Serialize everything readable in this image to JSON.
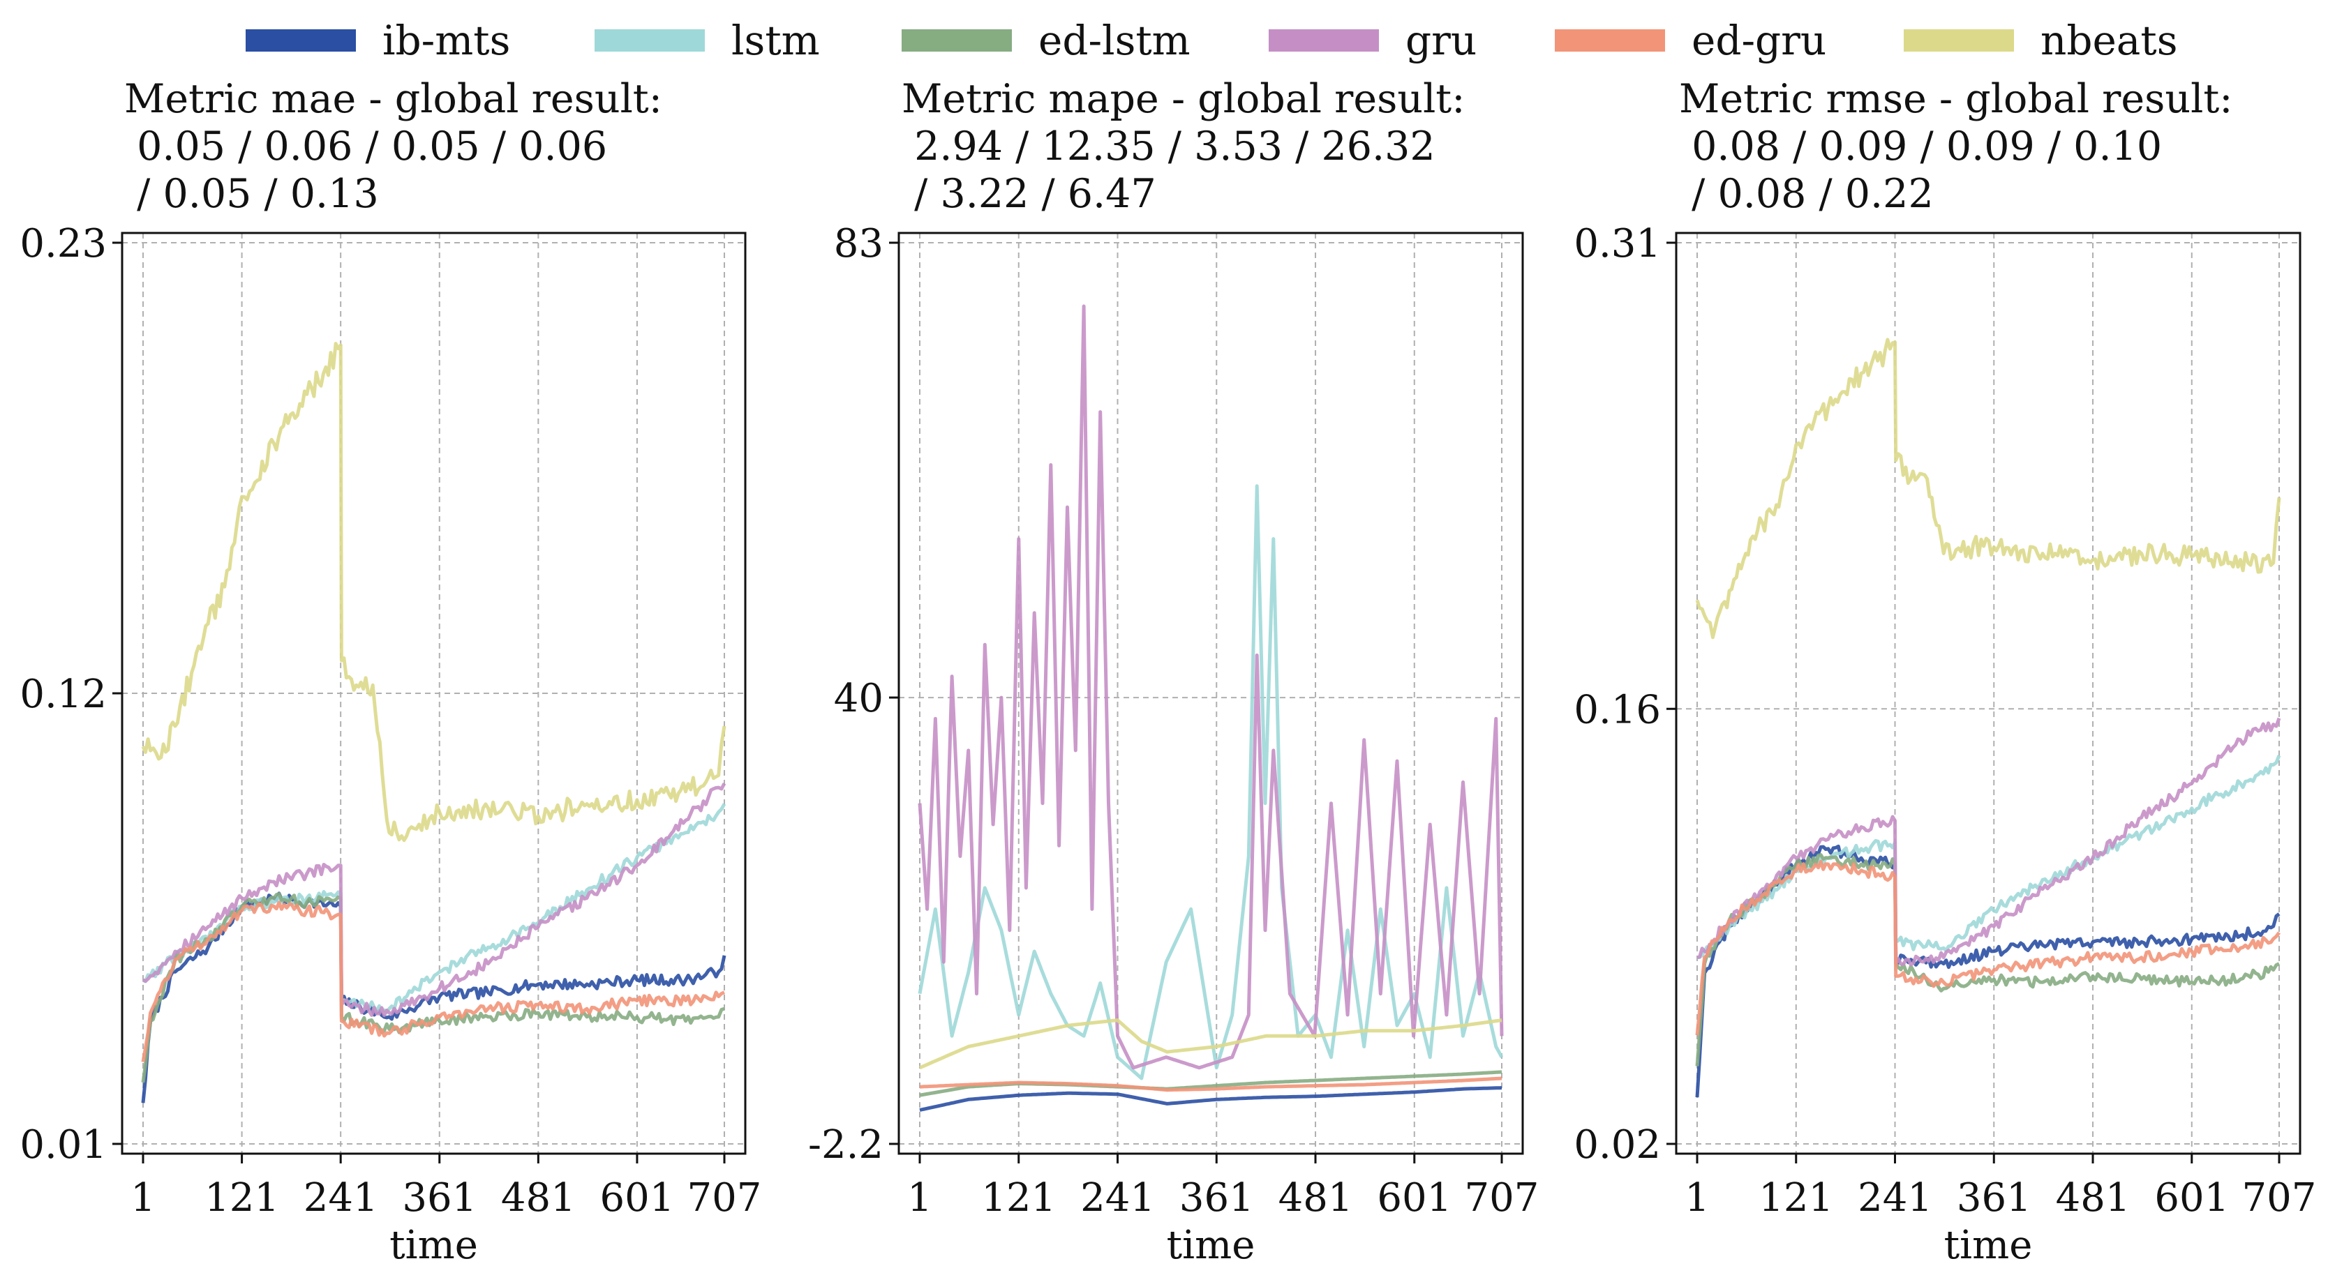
{
  "legend": [
    {
      "name": "ib-mts",
      "color": "#2a4fa3"
    },
    {
      "name": "lstm",
      "color": "#9fd8d8"
    },
    {
      "name": "ed-lstm",
      "color": "#86ac82"
    },
    {
      "name": "gru",
      "color": "#c58fc5"
    },
    {
      "name": "ed-gru",
      "color": "#f29478"
    },
    {
      "name": "nbeats",
      "color": "#dcd98a"
    }
  ],
  "chart_data": [
    {
      "type": "line",
      "metric": "mae",
      "title_line1": "Metric mae - global result:",
      "title_line2": " 0.05 / 0.06 / 0.05 / 0.06",
      "title_line3": " / 0.05 / 0.13",
      "xlabel": "time",
      "ylabel": "",
      "x_ticks": [
        1,
        121,
        241,
        361,
        481,
        601,
        707
      ],
      "y_ticks": [
        0.01,
        0.12,
        0.23
      ],
      "y_tick_labels": [
        "0.01",
        "0.12",
        "0.23"
      ],
      "xlim": [
        1,
        707
      ],
      "ylim": [
        0.01,
        0.23
      ],
      "grid": true,
      "series": [
        {
          "name": "ib-mts",
          "x": [
            1,
            10,
            40,
            80,
            121,
            160,
            200,
            241,
            242,
            300,
            361,
            420,
            481,
            540,
            601,
            660,
            700,
            707
          ],
          "values": [
            0.02,
            0.04,
            0.052,
            0.058,
            0.068,
            0.07,
            0.069,
            0.068,
            0.045,
            0.041,
            0.046,
            0.047,
            0.049,
            0.049,
            0.05,
            0.05,
            0.052,
            0.056
          ]
        },
        {
          "name": "lstm",
          "x": [
            1,
            10,
            40,
            80,
            121,
            160,
            200,
            241,
            242,
            300,
            361,
            420,
            481,
            540,
            601,
            660,
            700,
            707
          ],
          "values": [
            0.05,
            0.051,
            0.056,
            0.06,
            0.068,
            0.069,
            0.07,
            0.071,
            0.045,
            0.043,
            0.052,
            0.058,
            0.064,
            0.072,
            0.08,
            0.086,
            0.091,
            0.093
          ]
        },
        {
          "name": "ed-lstm",
          "x": [
            1,
            10,
            40,
            80,
            121,
            160,
            200,
            241,
            242,
            300,
            361,
            420,
            481,
            540,
            601,
            660,
            700,
            707
          ],
          "values": [
            0.025,
            0.04,
            0.055,
            0.06,
            0.068,
            0.07,
            0.069,
            0.07,
            0.041,
            0.038,
            0.04,
            0.041,
            0.042,
            0.041,
            0.041,
            0.04,
            0.041,
            0.043
          ]
        },
        {
          "name": "gru",
          "x": [
            1,
            10,
            40,
            80,
            121,
            160,
            200,
            241,
            242,
            300,
            361,
            420,
            481,
            540,
            601,
            660,
            700,
            707
          ],
          "values": [
            0.05,
            0.051,
            0.057,
            0.063,
            0.07,
            0.074,
            0.076,
            0.078,
            0.044,
            0.042,
            0.048,
            0.054,
            0.063,
            0.07,
            0.078,
            0.089,
            0.097,
            0.098
          ]
        },
        {
          "name": "ed-gru",
          "x": [
            1,
            10,
            40,
            80,
            121,
            160,
            200,
            241,
            242,
            300,
            361,
            420,
            481,
            540,
            601,
            660,
            700,
            707
          ],
          "values": [
            0.03,
            0.042,
            0.055,
            0.06,
            0.067,
            0.068,
            0.067,
            0.066,
            0.04,
            0.037,
            0.041,
            0.043,
            0.044,
            0.043,
            0.045,
            0.045,
            0.046,
            0.047
          ]
        },
        {
          "name": "nbeats",
          "x": [
            1,
            10,
            20,
            40,
            60,
            80,
            100,
            121,
            140,
            160,
            180,
            200,
            220,
            241,
            242,
            260,
            280,
            300,
            330,
            361,
            420,
            481,
            540,
            601,
            660,
            700,
            707
          ],
          "values": [
            0.107,
            0.106,
            0.104,
            0.112,
            0.125,
            0.137,
            0.146,
            0.168,
            0.172,
            0.181,
            0.188,
            0.193,
            0.198,
            0.205,
            0.128,
            0.122,
            0.122,
            0.086,
            0.087,
            0.091,
            0.092,
            0.09,
            0.093,
            0.094,
            0.096,
            0.1,
            0.112
          ]
        }
      ]
    },
    {
      "type": "line",
      "metric": "mape",
      "title_line1": "Metric mape - global result:",
      "title_line2": " 2.94 / 12.35 / 3.53 / 26.32",
      "title_line3": " / 3.22 / 6.47",
      "xlabel": "time",
      "ylabel": "",
      "x_ticks": [
        1,
        121,
        241,
        361,
        481,
        601,
        707
      ],
      "y_ticks": [
        -2.2,
        40,
        83
      ],
      "y_tick_labels": [
        "-2.2",
        "40",
        "83"
      ],
      "xlim": [
        1,
        707
      ],
      "ylim": [
        -2.2,
        83
      ],
      "grid": true,
      "series": [
        {
          "name": "ib-mts",
          "x": [
            1,
            60,
            121,
            181,
            241,
            301,
            361,
            421,
            481,
            541,
            601,
            661,
            707
          ],
          "values": [
            1.0,
            2.0,
            2.4,
            2.6,
            2.5,
            1.6,
            2.0,
            2.2,
            2.3,
            2.5,
            2.7,
            3.0,
            3.1
          ]
        },
        {
          "name": "lstm",
          "x": [
            1,
            20,
            40,
            60,
            80,
            100,
            121,
            140,
            160,
            180,
            200,
            220,
            241,
            270,
            300,
            330,
            361,
            380,
            400,
            410,
            420,
            430,
            440,
            460,
            481,
            500,
            520,
            540,
            560,
            580,
            601,
            620,
            640,
            660,
            680,
            700,
            707
          ],
          "values": [
            12,
            20,
            8,
            14,
            22,
            18,
            10,
            16,
            12,
            9,
            8,
            13,
            6,
            4,
            15,
            20,
            5,
            10,
            25,
            60,
            30,
            55,
            22,
            8,
            10,
            6,
            18,
            7,
            20,
            9,
            12,
            6,
            22,
            8,
            14,
            7,
            6
          ]
        },
        {
          "name": "ed-lstm",
          "x": [
            1,
            60,
            121,
            181,
            241,
            301,
            361,
            421,
            481,
            541,
            601,
            661,
            707
          ],
          "values": [
            2.4,
            3.2,
            3.5,
            3.4,
            3.2,
            3.0,
            3.3,
            3.6,
            3.8,
            4.0,
            4.2,
            4.4,
            4.6
          ]
        },
        {
          "name": "gru",
          "x": [
            1,
            10,
            20,
            30,
            40,
            50,
            60,
            70,
            80,
            90,
            100,
            110,
            121,
            130,
            140,
            150,
            160,
            170,
            180,
            190,
            200,
            210,
            220,
            230,
            241,
            260,
            300,
            340,
            380,
            400,
            410,
            420,
            430,
            450,
            480,
            500,
            520,
            540,
            560,
            580,
            600,
            620,
            640,
            660,
            680,
            700,
            707
          ],
          "values": [
            30,
            20,
            38,
            15,
            42,
            25,
            35,
            12,
            45,
            28,
            40,
            18,
            55,
            22,
            48,
            30,
            62,
            26,
            58,
            35,
            77,
            20,
            67,
            30,
            8,
            5,
            6,
            5,
            6,
            10,
            44,
            18,
            35,
            12,
            8,
            30,
            10,
            36,
            12,
            34,
            8,
            28,
            10,
            32,
            12,
            38,
            8
          ]
        },
        {
          "name": "ed-gru",
          "x": [
            1,
            60,
            121,
            181,
            241,
            301,
            361,
            421,
            481,
            541,
            601,
            661,
            707
          ],
          "values": [
            3.2,
            3.4,
            3.6,
            3.5,
            3.3,
            2.9,
            3.0,
            3.2,
            3.3,
            3.4,
            3.6,
            3.8,
            4.0
          ]
        },
        {
          "name": "nbeats",
          "x": [
            1,
            60,
            121,
            181,
            241,
            270,
            301,
            361,
            421,
            481,
            541,
            601,
            661,
            707
          ],
          "values": [
            5.0,
            7.0,
            8.0,
            9.0,
            9.5,
            7.5,
            6.5,
            7.0,
            8.0,
            8.0,
            8.5,
            8.5,
            9.0,
            9.5
          ]
        }
      ]
    },
    {
      "type": "line",
      "metric": "rmse",
      "title_line1": "Metric rmse - global result:",
      "title_line2": " 0.08 / 0.09 / 0.09 / 0.10",
      "title_line3": " / 0.08 / 0.22",
      "xlabel": "time",
      "ylabel": "",
      "x_ticks": [
        1,
        121,
        241,
        361,
        481,
        601,
        707
      ],
      "y_ticks": [
        0.02,
        0.16,
        0.31
      ],
      "y_tick_labels": [
        "0.02",
        "0.16",
        "0.31"
      ],
      "xlim": [
        1,
        707
      ],
      "ylim": [
        0.02,
        0.31
      ],
      "grid": true,
      "series": [
        {
          "name": "ib-mts",
          "x": [
            1,
            10,
            40,
            80,
            121,
            160,
            200,
            241,
            242,
            300,
            361,
            420,
            481,
            540,
            601,
            660,
            700,
            707
          ],
          "values": [
            0.035,
            0.075,
            0.09,
            0.1,
            0.11,
            0.115,
            0.112,
            0.11,
            0.08,
            0.078,
            0.082,
            0.084,
            0.085,
            0.085,
            0.086,
            0.087,
            0.09,
            0.094
          ]
        },
        {
          "name": "lstm",
          "x": [
            1,
            10,
            40,
            80,
            121,
            160,
            200,
            241,
            242,
            300,
            361,
            420,
            481,
            540,
            601,
            660,
            700,
            707
          ],
          "values": [
            0.08,
            0.082,
            0.09,
            0.098,
            0.108,
            0.112,
            0.115,
            0.117,
            0.085,
            0.083,
            0.095,
            0.105,
            0.112,
            0.12,
            0.128,
            0.136,
            0.142,
            0.145
          ]
        },
        {
          "name": "ed-lstm",
          "x": [
            1,
            10,
            40,
            80,
            121,
            160,
            200,
            241,
            242,
            300,
            361,
            420,
            481,
            540,
            601,
            660,
            700,
            707
          ],
          "values": [
            0.045,
            0.078,
            0.092,
            0.1,
            0.11,
            0.112,
            0.11,
            0.11,
            0.078,
            0.07,
            0.073,
            0.072,
            0.074,
            0.073,
            0.072,
            0.073,
            0.076,
            0.078
          ]
        },
        {
          "name": "gru",
          "x": [
            1,
            10,
            40,
            80,
            121,
            160,
            200,
            241,
            242,
            300,
            361,
            420,
            481,
            540,
            601,
            660,
            700,
            707
          ],
          "values": [
            0.08,
            0.082,
            0.092,
            0.102,
            0.112,
            0.118,
            0.122,
            0.124,
            0.078,
            0.08,
            0.09,
            0.102,
            0.112,
            0.125,
            0.136,
            0.15,
            0.155,
            0.157
          ]
        },
        {
          "name": "ed-gru",
          "x": [
            1,
            10,
            40,
            80,
            121,
            160,
            200,
            241,
            242,
            300,
            361,
            420,
            481,
            540,
            601,
            660,
            700,
            707
          ],
          "values": [
            0.055,
            0.08,
            0.092,
            0.1,
            0.108,
            0.11,
            0.108,
            0.106,
            0.074,
            0.072,
            0.076,
            0.078,
            0.08,
            0.08,
            0.082,
            0.083,
            0.086,
            0.088
          ]
        },
        {
          "name": "nbeats",
          "x": [
            1,
            10,
            20,
            40,
            60,
            80,
            100,
            121,
            140,
            160,
            180,
            200,
            220,
            241,
            242,
            260,
            280,
            300,
            330,
            361,
            420,
            481,
            540,
            601,
            660,
            700,
            707
          ],
          "values": [
            0.195,
            0.19,
            0.183,
            0.198,
            0.21,
            0.22,
            0.225,
            0.245,
            0.25,
            0.257,
            0.262,
            0.268,
            0.272,
            0.278,
            0.24,
            0.234,
            0.234,
            0.21,
            0.212,
            0.212,
            0.21,
            0.208,
            0.21,
            0.209,
            0.208,
            0.207,
            0.228
          ]
        }
      ]
    }
  ]
}
